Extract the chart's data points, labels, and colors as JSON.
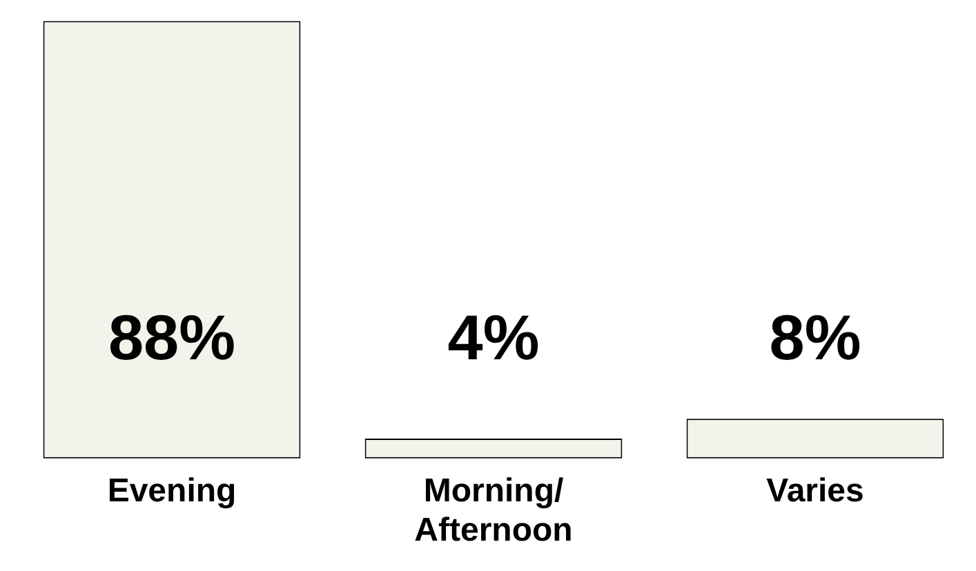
{
  "chart_data": {
    "type": "bar",
    "categories": [
      "Evening",
      "Morning/ Afternoon",
      "Varies"
    ],
    "values": [
      88,
      4,
      8
    ],
    "value_labels": [
      "88%",
      "4%",
      "8%"
    ],
    "color": "#f3f3ec",
    "relative": false,
    "grid": false,
    "legend": false
  }
}
